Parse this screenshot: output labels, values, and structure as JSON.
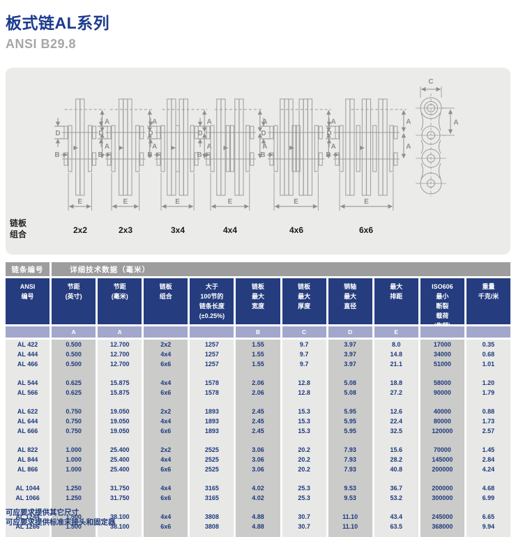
{
  "header": {
    "title": "板式链AL系列",
    "subtitle": "ANSI B29.8"
  },
  "panel": {
    "axis_label": "链板\n组合",
    "combos": [
      {
        "label": "2x2"
      },
      {
        "label": "2x3"
      },
      {
        "label": "3x4"
      },
      {
        "label": "4x4"
      },
      {
        "label": "4x6"
      },
      {
        "label": "6x6"
      }
    ],
    "dim_labels": {
      "a": "A",
      "b": "B",
      "c": "C",
      "d": "D",
      "e": "E"
    }
  },
  "table": {
    "bar": {
      "col1": "链条编号",
      "rest": "详细技术数据（毫米）"
    },
    "columns": [
      {
        "label": "ANSI\n编号",
        "sub": ""
      },
      {
        "label": "节距\n(英寸)",
        "sub": "A"
      },
      {
        "label": "节距\n(毫米)",
        "sub": "A"
      },
      {
        "label": "链板\n组合",
        "sub": ""
      },
      {
        "label": "大于\n100节的\n链条长度\n(±0.25%)",
        "sub": ""
      },
      {
        "label": "链板\n最大\n宽度",
        "sub": "B"
      },
      {
        "label": "链板\n最大\n厚度",
        "sub": "C"
      },
      {
        "label": "销轴\n最大\n直径",
        "sub": "D"
      },
      {
        "label": "最大\n排距",
        "sub": "E"
      },
      {
        "label": "ISO606\n最小\n断裂\n载荷\n(牛顿)",
        "sub": ""
      },
      {
        "label": "重量\n千克/米",
        "sub": ""
      }
    ],
    "groups": [
      [
        [
          "AL 422",
          "0.500",
          "12.700",
          "2x2",
          "1257",
          "1.55",
          "9.7",
          "3.97",
          "8.0",
          "17000",
          "0.35"
        ],
        [
          "AL 444",
          "0.500",
          "12.700",
          "4x4",
          "1257",
          "1.55",
          "9.7",
          "3.97",
          "14.8",
          "34000",
          "0.68"
        ],
        [
          "AL 466",
          "0.500",
          "12.700",
          "6x6",
          "1257",
          "1.55",
          "9.7",
          "3.97",
          "21.1",
          "51000",
          "1.01"
        ]
      ],
      [
        [
          "AL 544",
          "0.625",
          "15.875",
          "4x4",
          "1578",
          "2.06",
          "12.8",
          "5.08",
          "18.8",
          "58000",
          "1.20"
        ],
        [
          "AL 566",
          "0.625",
          "15.875",
          "6x6",
          "1578",
          "2.06",
          "12.8",
          "5.08",
          "27.2",
          "90000",
          "1.79"
        ]
      ],
      [
        [
          "AL 622",
          "0.750",
          "19.050",
          "2x2",
          "1893",
          "2.45",
          "15.3",
          "5.95",
          "12.6",
          "40000",
          "0.88"
        ],
        [
          "AL 644",
          "0.750",
          "19.050",
          "4x4",
          "1893",
          "2.45",
          "15.3",
          "5.95",
          "22.4",
          "80000",
          "1.73"
        ],
        [
          "AL 666",
          "0.750",
          "19.050",
          "6x6",
          "1893",
          "2.45",
          "15.3",
          "5.95",
          "32.5",
          "120000",
          "2.57"
        ]
      ],
      [
        [
          "AL 822",
          "1.000",
          "25.400",
          "2x2",
          "2525",
          "3.06",
          "20.2",
          "7.93",
          "15.6",
          "70000",
          "1.45"
        ],
        [
          "AL 844",
          "1.000",
          "25.400",
          "4x4",
          "2525",
          "3.06",
          "20.2",
          "7.93",
          "28.2",
          "145000",
          "2.84"
        ],
        [
          "AL 866",
          "1.000",
          "25.400",
          "6x6",
          "2525",
          "3.06",
          "20.2",
          "7.93",
          "40.8",
          "200000",
          "4.24"
        ]
      ],
      [
        [
          "AL 1044",
          "1.250",
          "31.750",
          "4x4",
          "3165",
          "4.02",
          "25.3",
          "9.53",
          "36.7",
          "200000",
          "4.68"
        ],
        [
          "AL 1066",
          "1.250",
          "31.750",
          "6x6",
          "3165",
          "4.02",
          "25.3",
          "9.53",
          "53.2",
          "300000",
          "6.99"
        ]
      ],
      [
        [
          "AL 1244",
          "1.500",
          "38.100",
          "4x4",
          "3808",
          "4.88",
          "30.7",
          "11.10",
          "43.4",
          "245000",
          "6.65"
        ],
        [
          "AL 1266",
          "1.500",
          "38.100",
          "6x6",
          "3808",
          "4.88",
          "30.7",
          "11.10",
          "63.5",
          "368000",
          "9.94"
        ]
      ]
    ]
  },
  "footer": {
    "lines": [
      "可应要求提供其它尺寸",
      "可应要求提供标准末接头和固定器"
    ]
  },
  "colors": {
    "title_navy": "#1c3a8e",
    "header_navy": "#253c7e",
    "lavender": "#a2a7cb",
    "bar_gray": "#9d9d9d",
    "col_light": "#e8e8e7",
    "col_dark": "#cbcbca",
    "panel_gray": "#ebebe9",
    "line_gray": "#9b9b9b",
    "dim_gray": "#8e8e8e",
    "data_navy": "#1d3a7c"
  }
}
